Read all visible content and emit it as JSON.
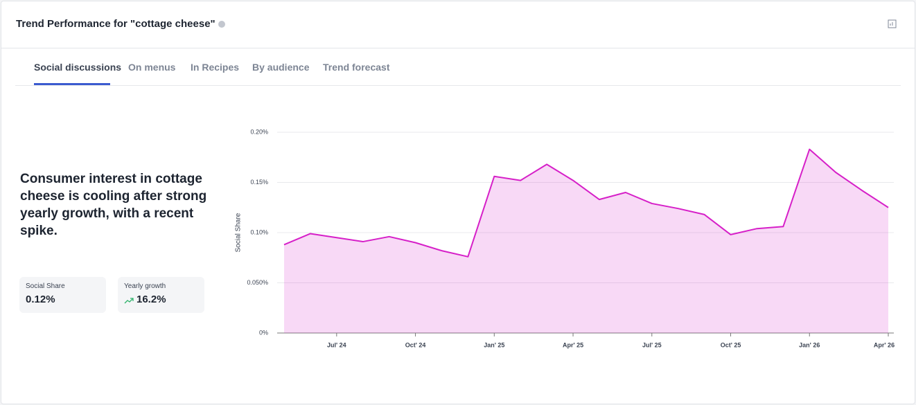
{
  "header": {
    "title": "Trend Performance for \"cottage cheese\""
  },
  "tabs": [
    "Social discussions",
    "On menus",
    "In Recipes",
    "By audience",
    "Trend forecast"
  ],
  "summary": "Consumer interest in cottage cheese is cooling after strong yearly growth, with a recent spike.",
  "stats": [
    {
      "label": "Social Share",
      "value": "0.12%"
    },
    {
      "label": "Yearly growth",
      "value": "16.2%"
    }
  ],
  "chart_data": {
    "type": "area",
    "ylabel": "Social Share",
    "categories": [
      null,
      null,
      "Jul' 24",
      null,
      null,
      "Oct' 24",
      null,
      null,
      "Jan' 25",
      null,
      null,
      "Apr' 25",
      null,
      null,
      "Jul' 25",
      null,
      null,
      "Oct' 25",
      null,
      null,
      "Jan' 26",
      null,
      null,
      "Apr' 26"
    ],
    "values": [
      0.088,
      0.099,
      0.095,
      0.091,
      0.096,
      0.09,
      0.082,
      0.076,
      0.156,
      0.152,
      0.168,
      0.152,
      0.133,
      0.14,
      0.129,
      0.124,
      0.118,
      0.098,
      0.104,
      0.106,
      0.183,
      0.16,
      0.142,
      0.125
    ],
    "color": "#d61fc8",
    "ylim": [
      0,
      0.2
    ],
    "yticks": [
      {
        "value": 0,
        "label": "0%"
      },
      {
        "value": 0.05,
        "label": "0.050%"
      },
      {
        "value": 0.1,
        "label": "0.10%"
      },
      {
        "value": 0.15,
        "label": "0.15%"
      },
      {
        "value": 0.2,
        "label": "0.20%"
      }
    ],
    "grid": true
  }
}
